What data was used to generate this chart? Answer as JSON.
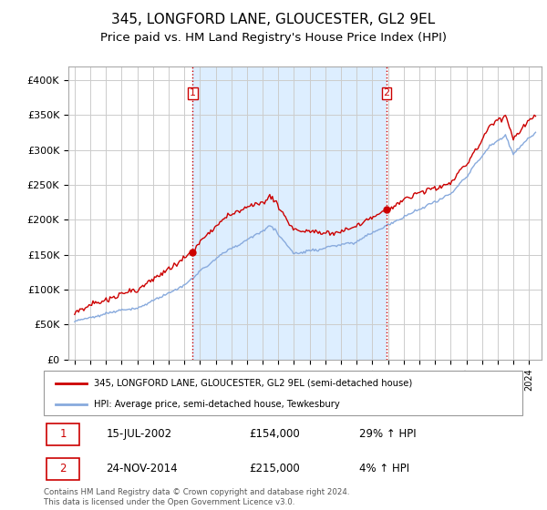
{
  "title": "345, LONGFORD LANE, GLOUCESTER, GL2 9EL",
  "subtitle": "Price paid vs. HM Land Registry's House Price Index (HPI)",
  "ylim": [
    0,
    420000
  ],
  "yticks": [
    0,
    50000,
    100000,
    150000,
    200000,
    250000,
    300000,
    350000,
    400000
  ],
  "ytick_labels": [
    "£0",
    "£50K",
    "£100K",
    "£150K",
    "£200K",
    "£250K",
    "£300K",
    "£350K",
    "£400K"
  ],
  "sale1_year": 2002,
  "sale1_month": 7,
  "sale1_day": 15,
  "sale1_price": 154000,
  "sale2_year": 2014,
  "sale2_month": 11,
  "sale2_day": 24,
  "sale2_price": 215000,
  "line_color_house": "#cc0000",
  "line_color_hpi": "#88aadd",
  "marker_color_house": "#cc0000",
  "legend_house": "345, LONGFORD LANE, GLOUCESTER, GL2 9EL (semi-detached house)",
  "legend_hpi": "HPI: Average price, semi-detached house, Tewkesbury",
  "footer": "Contains HM Land Registry data © Crown copyright and database right 2024.\nThis data is licensed under the Open Government Licence v3.0.",
  "grid_color": "#cccccc",
  "vline_color": "#cc0000",
  "fill_color": "#ddeeff",
  "title_fontsize": 11,
  "subtitle_fontsize": 9.5,
  "sale1_label": "15-JUL-2002",
  "sale2_label": "24-NOV-2014",
  "sale1_price_str": "£154,000",
  "sale2_price_str": "£215,000",
  "sale1_pct": "29% ↑ HPI",
  "sale2_pct": "4% ↑ HPI"
}
